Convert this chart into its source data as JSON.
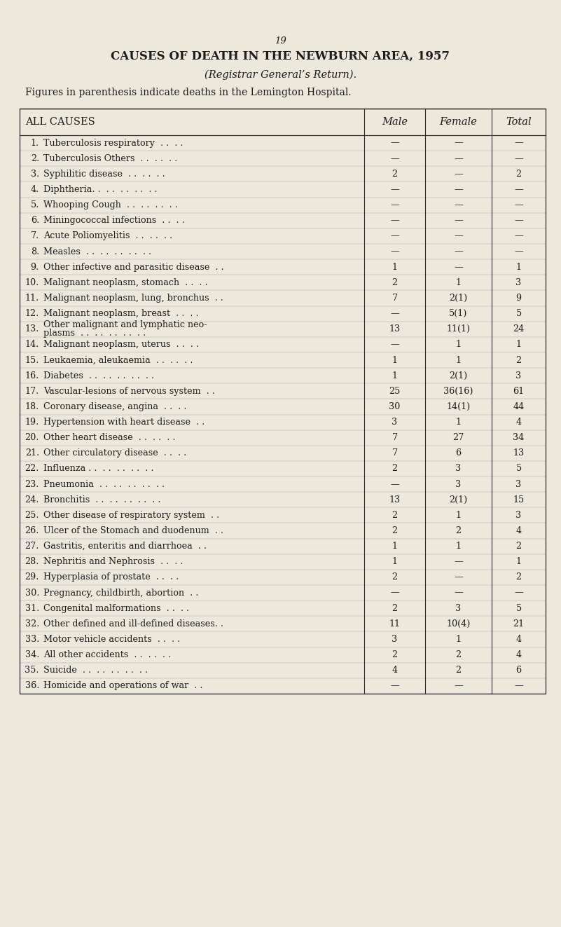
{
  "page_number": "19",
  "title": "CAUSES OF DEATH IN THE NEWBURN AREA, 1957",
  "subtitle": "(Registrar General’s Return).",
  "note": "Figures in parenthesis indicate deaths in the Lemington Hospital.",
  "col_headers": [
    "ALL CAUSES",
    "Male",
    "Female",
    "Total"
  ],
  "rows": [
    [
      "1.",
      "Tuberculosis respiratory  . .  . .",
      "—",
      "—",
      "—"
    ],
    [
      "2.",
      "Tuberculosis Others  . .  . .  . .",
      "—",
      "—",
      "—"
    ],
    [
      "3.",
      "Syphilitic disease  . .  . .  . .",
      "2",
      "—",
      "2"
    ],
    [
      "4.",
      "Diphtheria. .  . .  . .  . .  . .",
      "—",
      "—",
      "—"
    ],
    [
      "5.",
      "Whooping Cough  . .  . .  . .  . .",
      "—",
      "—",
      "—"
    ],
    [
      "6.",
      "Miningococcal infections  . .  . .",
      "—",
      "—",
      "—"
    ],
    [
      "7.",
      "Acute Poliomyelitis  . .  . .  . .",
      "—",
      "—",
      "—"
    ],
    [
      "8.",
      "Measles  . .  . .  . .  . .  . .",
      "—",
      "—",
      "—"
    ],
    [
      "9.",
      "Other infective and parasitic disease  . .",
      "1",
      "—",
      "1"
    ],
    [
      "10.",
      "Malignant neoplasm, stomach  . .  . .",
      "2",
      "1",
      "3"
    ],
    [
      "11.",
      "Malignant neoplasm, lung, bronchus  . .",
      "7",
      "2(1)",
      "9"
    ],
    [
      "12.",
      "Malignant neoplasm, breast  . .  . .",
      "—",
      "5(1)",
      "5"
    ],
    [
      "13.",
      "Other malignant and lymphatic neo-\nplasms  . .  . .  . .  . .  . .",
      "13",
      "11(1)",
      "24"
    ],
    [
      "14.",
      "Malignant neoplasm, uterus  . .  . .",
      "—",
      "1",
      "1"
    ],
    [
      "15.",
      "Leukaemia, aleukaemia  . .  . .  . .",
      "1",
      "1",
      "2"
    ],
    [
      "16.",
      "Diabetes  . .  . .  . .  . .  . .",
      "1",
      "2(1)",
      "3"
    ],
    [
      "17.",
      "Vascular-lesions of nervous system  . .",
      "25",
      "36(16)",
      "61"
    ],
    [
      "18.",
      "Coronary disease, angina  . .  . .",
      "30",
      "14(1)",
      "44"
    ],
    [
      "19.",
      "Hypertension with heart disease  . .",
      "3",
      "1",
      "4"
    ],
    [
      "20.",
      "Other heart disease  . .  . .  . .",
      "7",
      "27",
      "34"
    ],
    [
      "21.",
      "Other circulatory disease  . .  . .",
      "7",
      "6",
      "13"
    ],
    [
      "22.",
      "Influenza . .  . .  . .  . .  . .",
      "2",
      "3",
      "5"
    ],
    [
      "23.",
      "Pneumonia  . .  . .  . .  . .  . .",
      "—",
      "3",
      "3"
    ],
    [
      "24.",
      "Bronchitis  . .  . .  . .  . .  . .",
      "13",
      "2(1)",
      "15"
    ],
    [
      "25.",
      "Other disease of respiratory system  . .",
      "2",
      "1",
      "3"
    ],
    [
      "26.",
      "Ulcer of the Stomach and duodenum  . .",
      "2",
      "2",
      "4"
    ],
    [
      "27.",
      "Gastritis, enteritis and diarrhoea  . .",
      "1",
      "1",
      "2"
    ],
    [
      "28.",
      "Nephritis and Nephrosis  . .  . .",
      "1",
      "—",
      "1"
    ],
    [
      "29.",
      "Hyperplasia of prostate  . .  . .",
      "2",
      "—",
      "2"
    ],
    [
      "30.",
      "Pregnancy, childbirth, abortion  . .",
      "—",
      "—",
      "—"
    ],
    [
      "31.",
      "Congenital malformations  . .  . .",
      "2",
      "3",
      "5"
    ],
    [
      "32.",
      "Other defined and ill-defined diseases. .",
      "11",
      "10(4)",
      "21"
    ],
    [
      "33.",
      "Motor vehicle accidents  . .  . .",
      "3",
      "1",
      "4"
    ],
    [
      "34.",
      "All other accidents  . .  . .  . .",
      "2",
      "2",
      "4"
    ],
    [
      "35.",
      "Suicide  . .  . .  . .  . .  . .",
      "4",
      "2",
      "6"
    ],
    [
      "36.",
      "Homicide and operations of war  . .",
      "—",
      "—",
      "—"
    ]
  ],
  "bg_color": "#ede8dc",
  "text_color": "#1c1c1c",
  "line_color": "#2a2a2a",
  "fig_width": 8.01,
  "fig_height": 13.23,
  "dpi": 100
}
